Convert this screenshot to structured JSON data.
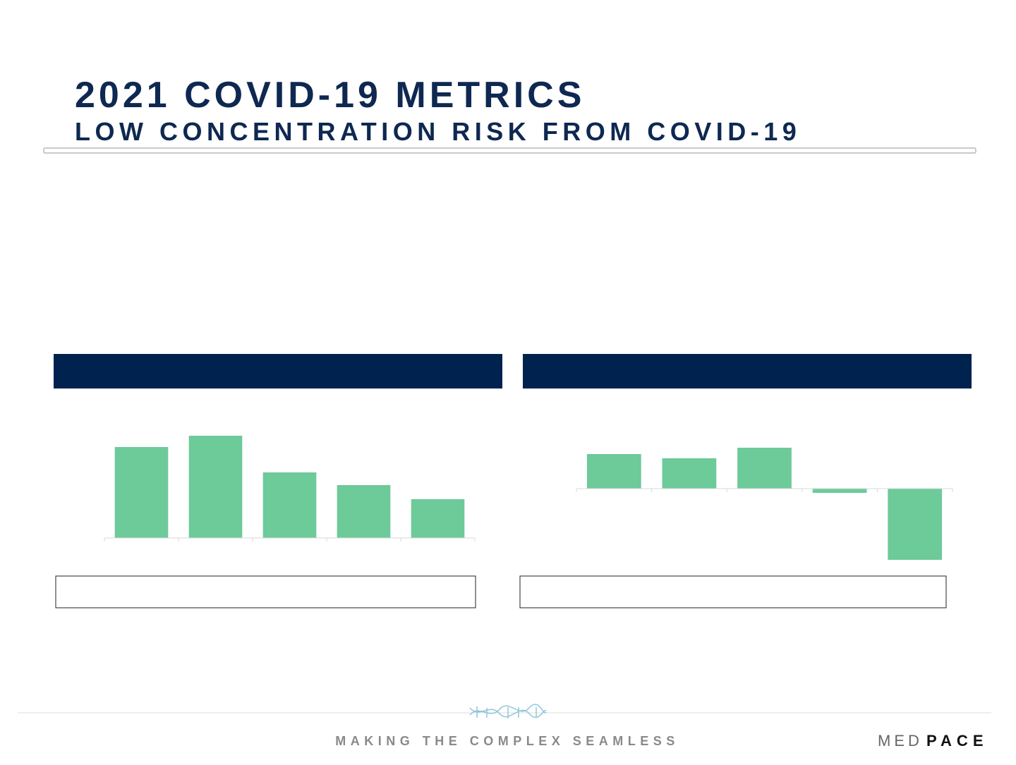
{
  "header": {
    "title": "2021 COVID-19 METRICS",
    "subtitle": "LOW CONCENTRATION RISK FROM COVID-19"
  },
  "chart_data": [
    {
      "type": "bar",
      "categories": [
        null,
        null,
        null,
        null,
        null
      ],
      "values": [
        129,
        145,
        93,
        75,
        55
      ],
      "color": "#6dca99",
      "ylim": [
        0,
        160
      ]
    },
    {
      "type": "bar",
      "categories": [
        null,
        null,
        null,
        null,
        null
      ],
      "values": [
        49,
        43,
        58,
        -6,
        -101
      ],
      "color": "#6dca99",
      "ylim": [
        -110,
        70
      ]
    }
  ],
  "footer": {
    "tagline": "MAKING THE COMPLEX SEAMLESS",
    "logo": [
      "MED",
      "PACE"
    ]
  }
}
